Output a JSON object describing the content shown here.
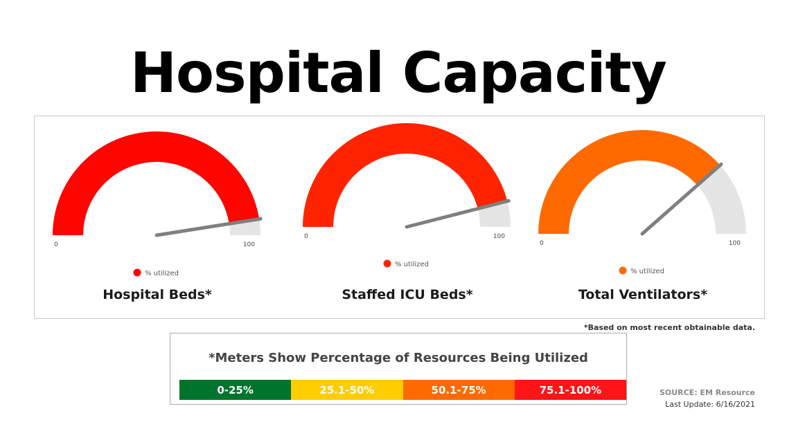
{
  "title": "Hospital Capacity",
  "chart_data": [
    {
      "type": "gauge",
      "title": "Hospital Beds*",
      "value": 95,
      "min": 0,
      "max": 100,
      "min_label": "0",
      "max_label": "100",
      "legend_label": "% utilized",
      "color": "#ff0500"
    },
    {
      "type": "gauge",
      "title": "Staffed ICU Beds*",
      "value": 92,
      "min": 0,
      "max": 100,
      "min_label": "0",
      "max_label": "100",
      "legend_label": "% utilized",
      "color": "#ff2400"
    },
    {
      "type": "gauge",
      "title": "Total Ventilators*",
      "value": 77,
      "min": 0,
      "max": 100,
      "min_label": "0",
      "max_label": "100",
      "legend_label": "% utilized",
      "color": "#ff6a00"
    }
  ],
  "colors": {
    "track": "#e5e5e5",
    "needle": "#7f7f7f"
  },
  "footnote": "*Based on most recent obtainable data.",
  "legend": {
    "title": "*Meters Show Percentage of Resources Being Utilized",
    "segments": [
      {
        "label": "0-25%",
        "color": "#00742c"
      },
      {
        "label": "25.1-50%",
        "color": "#ffcd00"
      },
      {
        "label": "50.1-75%",
        "color": "#ff6a00"
      },
      {
        "label": "75.1-100%",
        "color": "#ff1417"
      }
    ]
  },
  "source": "SOURCE: EM Resource",
  "last_update": "Last Update: 6/16/2021"
}
